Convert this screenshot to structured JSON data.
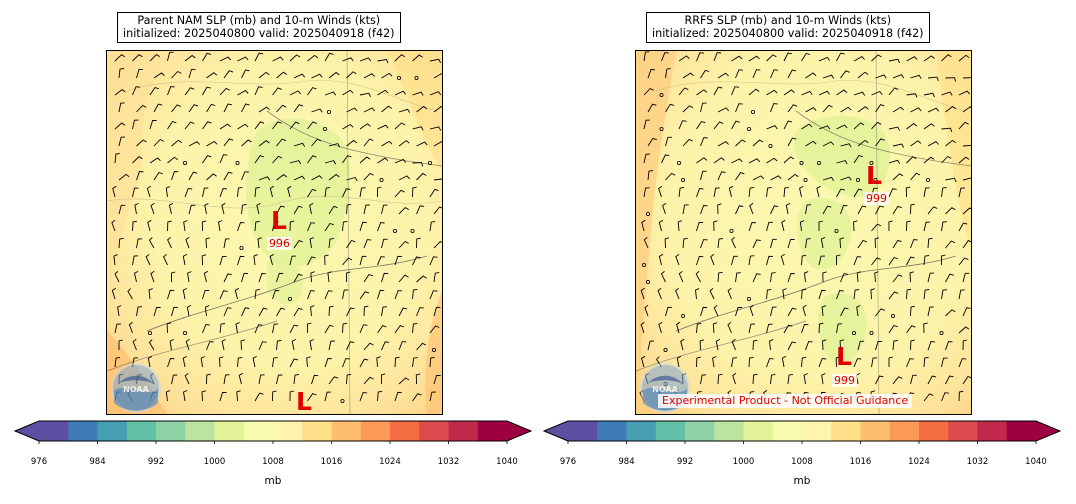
{
  "panels": [
    {
      "title_line1": "Parent NAM SLP (mb) and 10-m Winds (kts)",
      "title_line2": "initialized: 2025040800 valid: 2025040918 (f42)",
      "lows": [
        {
          "label": "L",
          "value": "996"
        },
        {
          "label": "L",
          "value": ""
        }
      ],
      "logo_text": "NOAA"
    },
    {
      "title_line1": "RRFS SLP (mb) and 10-m Winds (kts)",
      "title_line2": "initialized: 2025040800 valid: 2025040918 (f42)",
      "lows": [
        {
          "label": "L",
          "value": "999"
        },
        {
          "label": "L",
          "value": "999"
        }
      ],
      "logo_text": "NOAA",
      "watermark": "Experimental Product - Not Official Guidance"
    }
  ],
  "colorbar": {
    "ticks": [
      "976",
      "984",
      "992",
      "1000",
      "1008",
      "1016",
      "1024",
      "1032",
      "1040"
    ],
    "unit": "mb",
    "colors": [
      "#5e4fa2",
      "#3f7bb6",
      "#469eb3",
      "#62c0a6",
      "#8cd2a4",
      "#bce4a0",
      "#e2f39a",
      "#f7fbae",
      "#fff5ae",
      "#fee08b",
      "#fdbf6f",
      "#fb9a58",
      "#f46d43",
      "#db4a4c",
      "#c0294a",
      "#9e0142"
    ]
  }
}
